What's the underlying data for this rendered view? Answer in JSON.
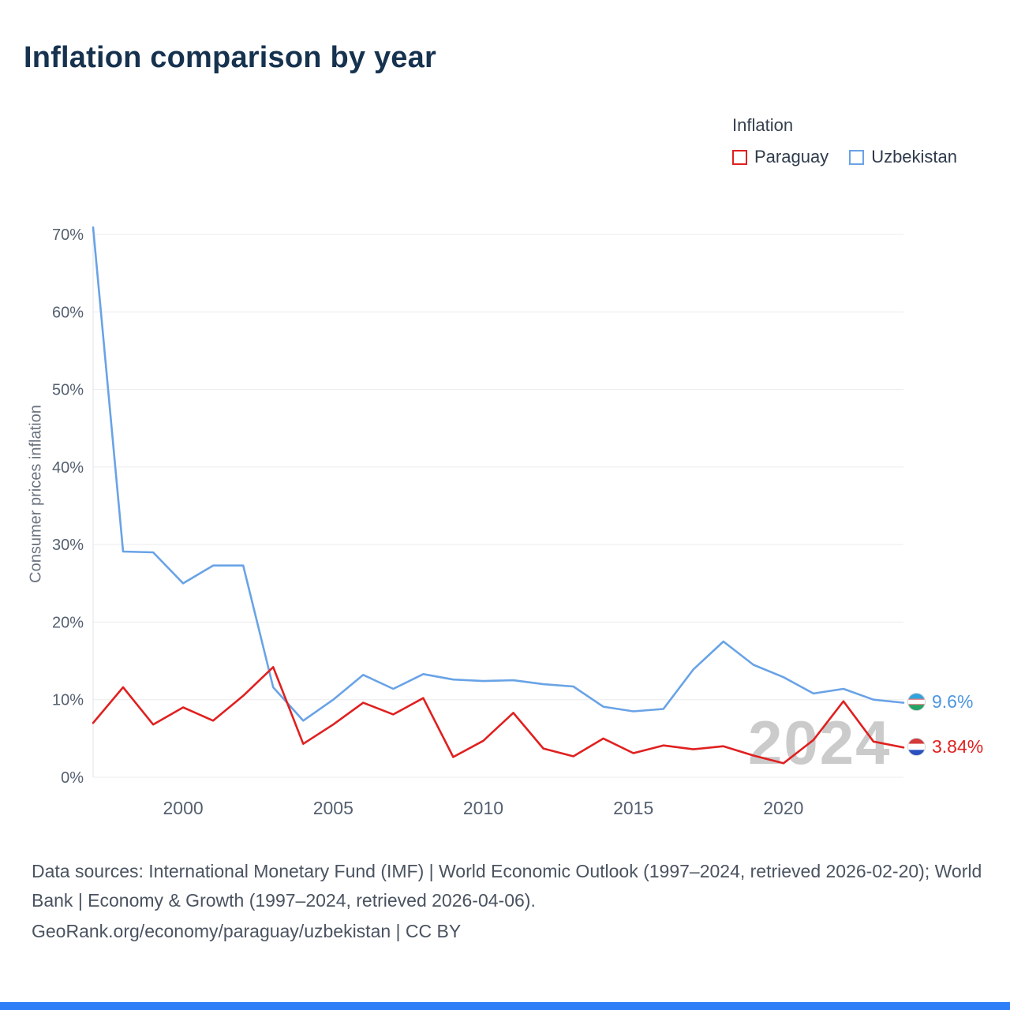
{
  "title": "Inflation comparison by year",
  "legend": {
    "title": "Inflation",
    "series": [
      {
        "label": "Paraguay",
        "color": "#e02020"
      },
      {
        "label": "Uzbekistan",
        "color": "#69a3e6"
      }
    ]
  },
  "end_labels": {
    "uzbekistan_value": "9.6%",
    "paraguay_value": "3.84%"
  },
  "watermark": "2024",
  "footer": {
    "sources": "Data sources: International Monetary Fund (IMF) | World Economic Outlook (1997–2024, retrieved 2026-02-20); World Bank | Economy & Growth (1997–2024, retrieved 2026-04-06).",
    "link": "GeoRank.org/economy/paraguay/uzbekistan | CC BY"
  },
  "chart_data": {
    "type": "line",
    "title": "Inflation comparison by year",
    "xlabel": "",
    "ylabel": "Consumer prices inflation",
    "ylim": [
      0,
      70
    ],
    "grid": true,
    "legend_position": "top-right",
    "x": [
      1997,
      1998,
      1999,
      2000,
      2001,
      2002,
      2003,
      2004,
      2005,
      2006,
      2007,
      2008,
      2009,
      2010,
      2011,
      2012,
      2013,
      2014,
      2015,
      2016,
      2017,
      2018,
      2019,
      2020,
      2021,
      2022,
      2023,
      2024
    ],
    "xticks": [
      2000,
      2005,
      2010,
      2015,
      2020
    ],
    "yticks": [
      0,
      10,
      20,
      30,
      40,
      50,
      60,
      70
    ],
    "ytick_suffix": "%",
    "series": [
      {
        "name": "Uzbekistan",
        "color": "#69a3e6",
        "values": [
          70.9,
          29.1,
          29.0,
          25.0,
          27.3,
          27.3,
          11.6,
          7.3,
          10.0,
          13.2,
          11.4,
          13.3,
          12.6,
          12.4,
          12.5,
          12.0,
          11.7,
          9.1,
          8.5,
          8.8,
          13.9,
          17.5,
          14.5,
          12.9,
          10.8,
          11.4,
          10.0,
          9.6
        ]
      },
      {
        "name": "Paraguay",
        "color": "#e02020",
        "values": [
          7.0,
          11.6,
          6.8,
          9.0,
          7.3,
          10.5,
          14.2,
          4.3,
          6.8,
          9.6,
          8.1,
          10.2,
          2.6,
          4.7,
          8.3,
          3.7,
          2.7,
          5.0,
          3.1,
          4.1,
          3.6,
          4.0,
          2.8,
          1.8,
          4.8,
          9.8,
          4.6,
          3.84
        ]
      }
    ]
  }
}
